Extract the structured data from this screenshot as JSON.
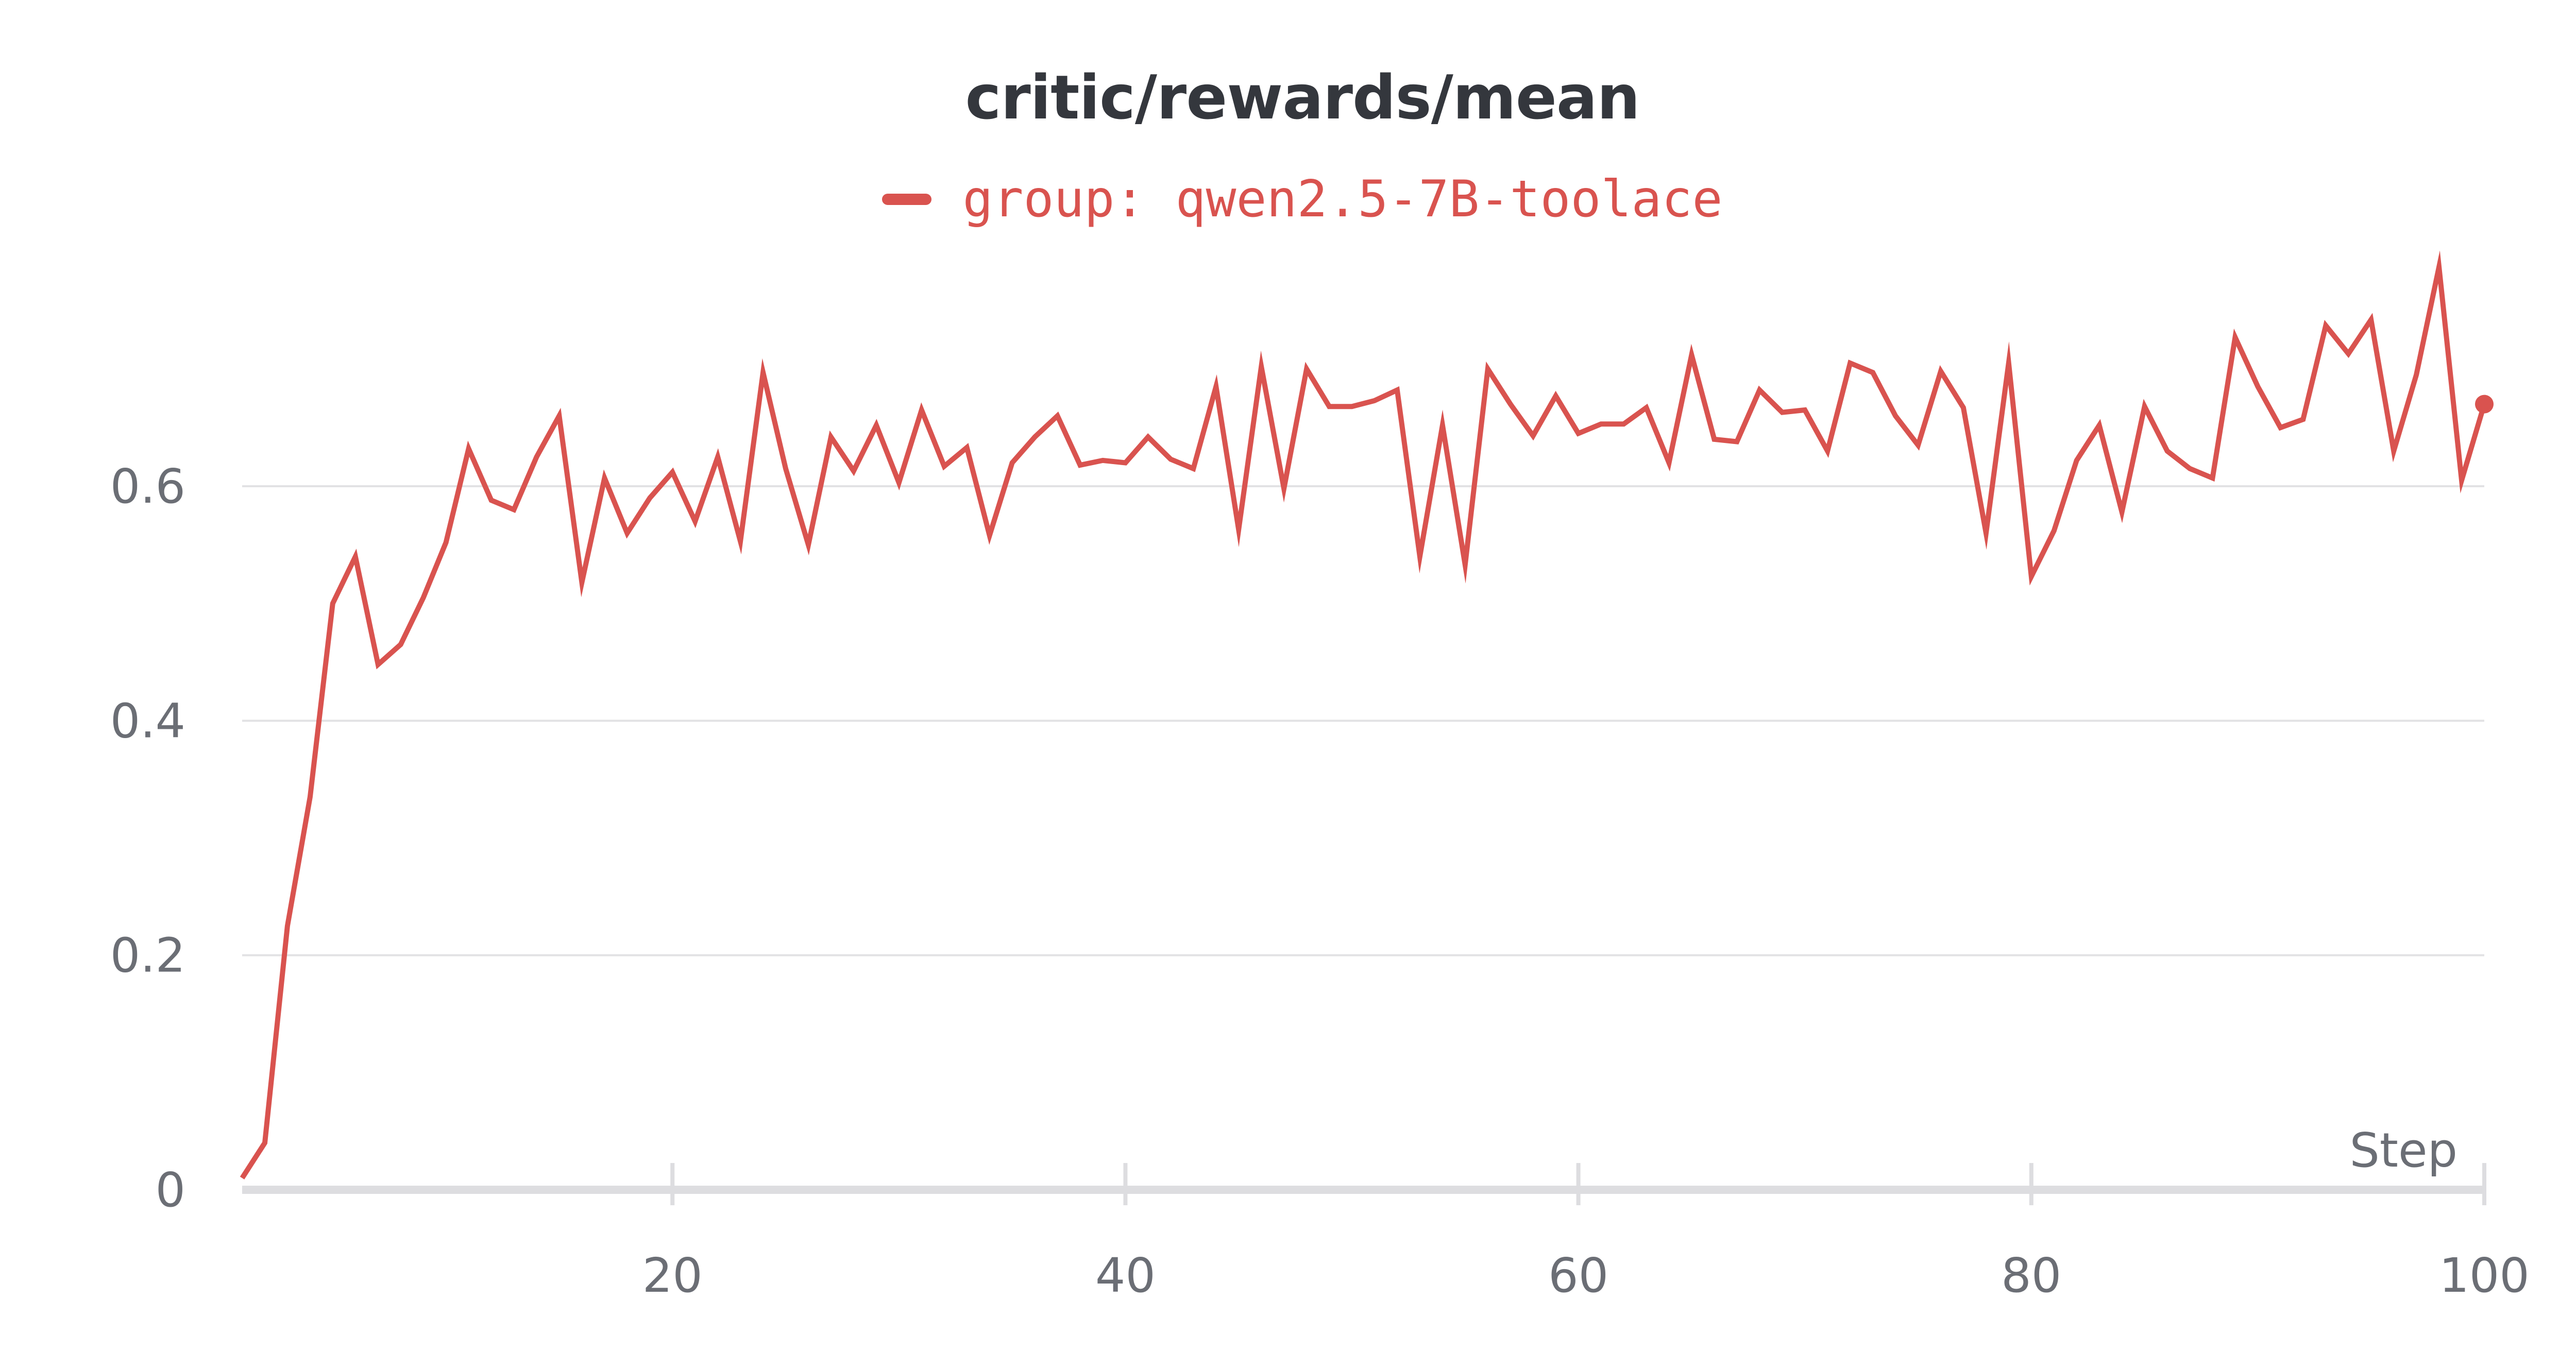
{
  "chart_data": {
    "type": "line",
    "title": "critic/rewards/mean",
    "legend": [
      {
        "label": "group: qwen2.5-7B-toolace",
        "color": "#d9534f"
      }
    ],
    "xlabel": "Step",
    "ylabel": "",
    "xlim": [
      1,
      100
    ],
    "ylim": [
      0,
      0.8
    ],
    "xticks": [
      {
        "value": 20,
        "label": "20"
      },
      {
        "value": 40,
        "label": "40"
      },
      {
        "value": 60,
        "label": "60"
      },
      {
        "value": 80,
        "label": "80"
      },
      {
        "value": 100,
        "label": "100"
      }
    ],
    "yticks": [
      {
        "value": 0,
        "label": "0"
      },
      {
        "value": 0.2,
        "label": "0.2"
      },
      {
        "value": 0.4,
        "label": "0.4"
      },
      {
        "value": 0.6,
        "label": "0.6"
      }
    ],
    "grid": "horizontal",
    "x": [
      1,
      2,
      3,
      4,
      5,
      6,
      7,
      8,
      9,
      10,
      11,
      12,
      13,
      14,
      15,
      16,
      17,
      18,
      19,
      20,
      21,
      22,
      23,
      24,
      25,
      26,
      27,
      28,
      29,
      30,
      31,
      32,
      33,
      34,
      35,
      36,
      37,
      38,
      39,
      40,
      41,
      42,
      43,
      44,
      45,
      46,
      47,
      48,
      49,
      50,
      51,
      52,
      53,
      54,
      55,
      56,
      57,
      58,
      59,
      60,
      61,
      62,
      63,
      64,
      65,
      66,
      67,
      68,
      69,
      70,
      71,
      72,
      73,
      74,
      75,
      76,
      77,
      78,
      79,
      80,
      81,
      82,
      83,
      84,
      85,
      86,
      87,
      88,
      89,
      90,
      91,
      92,
      93,
      94,
      95,
      96,
      97,
      98,
      99,
      100
    ],
    "series": [
      {
        "name": "group: qwen2.5-7B-toolace",
        "color": "#d9534f",
        "values": [
          0.01,
          0.04,
          0.225,
          0.335,
          0.5,
          0.54,
          0.448,
          0.465,
          0.505,
          0.552,
          0.632,
          0.588,
          0.58,
          0.625,
          0.66,
          0.518,
          0.607,
          0.56,
          0.59,
          0.612,
          0.57,
          0.625,
          0.553,
          0.697,
          0.615,
          0.55,
          0.642,
          0.613,
          0.652,
          0.603,
          0.665,
          0.617,
          0.633,
          0.558,
          0.62,
          0.642,
          0.66,
          0.618,
          0.622,
          0.62,
          0.642,
          0.623,
          0.615,
          0.685,
          0.563,
          0.702,
          0.598,
          0.7,
          0.668,
          0.668,
          0.673,
          0.682,
          0.54,
          0.652,
          0.533,
          0.7,
          0.67,
          0.643,
          0.677,
          0.645,
          0.653,
          0.653,
          0.667,
          0.62,
          0.712,
          0.64,
          0.638,
          0.682,
          0.663,
          0.665,
          0.63,
          0.705,
          0.697,
          0.66,
          0.635,
          0.698,
          0.667,
          0.56,
          0.705,
          0.523,
          0.562,
          0.622,
          0.652,
          0.578,
          0.668,
          0.63,
          0.615,
          0.607,
          0.727,
          0.685,
          0.65,
          0.657,
          0.737,
          0.713,
          0.742,
          0.63,
          0.695,
          0.787,
          0.605,
          0.67
        ]
      }
    ]
  }
}
